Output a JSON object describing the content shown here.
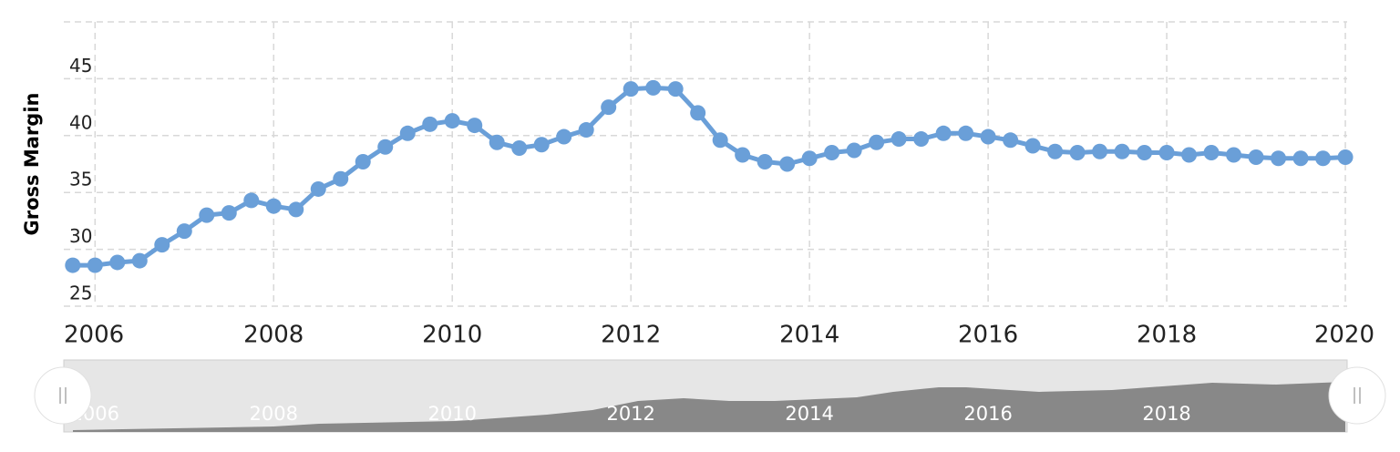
{
  "chart_data": {
    "type": "line",
    "y_axis_label": "Gross Margin",
    "x": [
      2005.75,
      2006,
      2006.25,
      2006.5,
      2006.75,
      2007,
      2007.25,
      2007.5,
      2007.75,
      2008,
      2008.25,
      2008.5,
      2008.75,
      2009,
      2009.25,
      2009.5,
      2009.75,
      2010,
      2010.25,
      2010.5,
      2010.75,
      2011,
      2011.25,
      2011.5,
      2011.75,
      2012,
      2012.25,
      2012.5,
      2012.75,
      2013,
      2013.25,
      2013.5,
      2013.75,
      2014,
      2014.25,
      2014.5,
      2014.75,
      2015,
      2015.25,
      2015.5,
      2015.75,
      2016,
      2016.25,
      2016.5,
      2016.75,
      2017,
      2017.25,
      2017.5,
      2017.75,
      2018,
      2018.25,
      2018.5,
      2018.75,
      2019,
      2019.25,
      2019.5,
      2019.75,
      2020
    ],
    "values": [
      28.6,
      28.6,
      28.85,
      29.0,
      30.4,
      31.6,
      33.0,
      33.2,
      34.3,
      33.8,
      33.5,
      35.3,
      36.2,
      37.7,
      39.0,
      40.2,
      41.0,
      41.3,
      40.9,
      39.4,
      38.9,
      39.2,
      39.9,
      40.5,
      42.5,
      44.1,
      44.2,
      44.1,
      42.0,
      39.6,
      38.3,
      37.7,
      37.5,
      38.0,
      38.5,
      38.7,
      39.4,
      39.7,
      39.7,
      40.2,
      40.2,
      39.9,
      39.6,
      39.1,
      38.6,
      38.5,
      38.6,
      38.6,
      38.5,
      38.5,
      38.3,
      38.5,
      38.3,
      38.1,
      38.0,
      38.0,
      38.0,
      38.1
    ],
    "color": "#6a9fd8",
    "xlim": [
      2005.65,
      2020.02
    ],
    "xticks": [
      2006,
      2008,
      2010,
      2012,
      2014,
      2016,
      2018,
      2020
    ],
    "ylim": [
      25,
      50
    ],
    "yticks": [
      25,
      30,
      35,
      40,
      45
    ],
    "grid": true,
    "navigator_xticks": [
      2006,
      2008,
      2010,
      2012,
      2014,
      2016,
      2018
    ]
  }
}
